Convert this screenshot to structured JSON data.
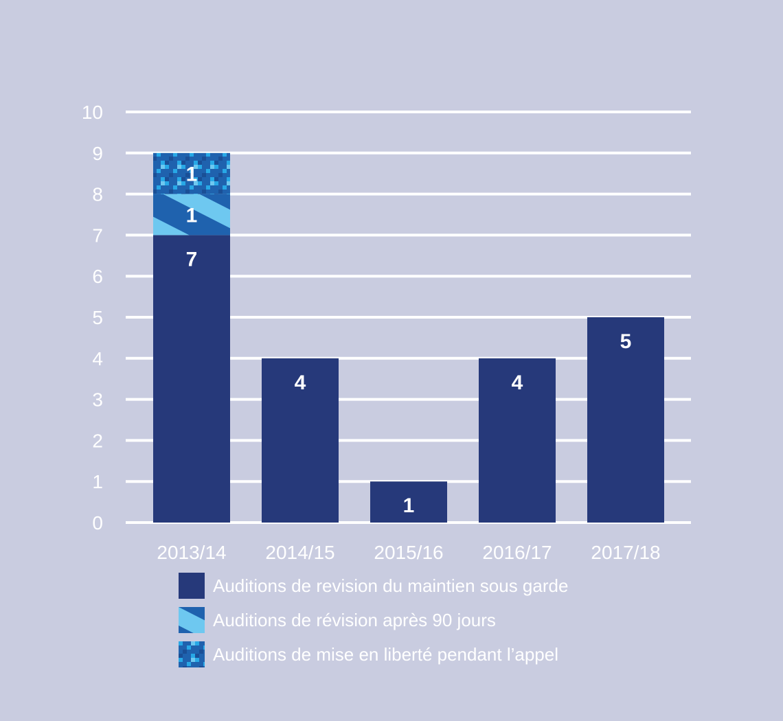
{
  "chart_data": {
    "type": "bar",
    "stacked": true,
    "categories": [
      "2013/14",
      "2014/15",
      "2015/16",
      "2016/17",
      "2017/18"
    ],
    "series": [
      {
        "name": "Auditions de revision du maintien sous garde",
        "values": [
          7,
          4,
          1,
          4,
          5
        ],
        "pattern": "solid",
        "color": "#26397a"
      },
      {
        "name": "Auditions de révision après 90 jours",
        "values": [
          1,
          0,
          0,
          0,
          0
        ],
        "pattern": "diagonal",
        "color": "#1f62ae",
        "color2": "#6ec8f0"
      },
      {
        "name": "Auditions de mise en liberté pendant l’appel",
        "values": [
          1,
          0,
          0,
          0,
          0
        ],
        "pattern": "pixel",
        "color": "#1f62ae",
        "color2": "#28a8e6"
      }
    ],
    "data_labels": [
      {
        "category": "2013/14",
        "labels": [
          "7",
          "1",
          "1"
        ]
      },
      {
        "category": "2014/15",
        "labels": [
          "4"
        ]
      },
      {
        "category": "2015/16",
        "labels": [
          "1"
        ]
      },
      {
        "category": "2016/17",
        "labels": [
          "4"
        ]
      },
      {
        "category": "2017/18",
        "labels": [
          "5"
        ]
      }
    ],
    "yticks": [
      "0",
      "1",
      "2",
      "3",
      "4",
      "5",
      "6",
      "7",
      "8",
      "9",
      "10"
    ],
    "ylim": [
      0,
      10
    ],
    "grid": true,
    "legend_position": "bottom-left"
  },
  "colors": {
    "background": "#c9cce0",
    "gridline": "#ffffff",
    "text": "#ffffff"
  }
}
